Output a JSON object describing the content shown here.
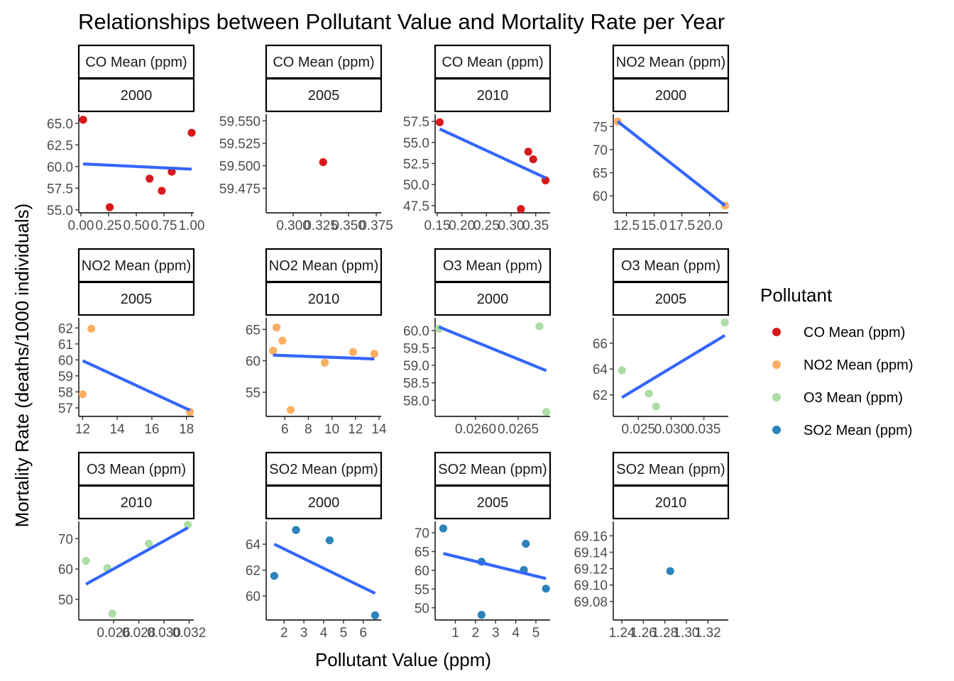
{
  "colors": {
    "CO Mean (ppm)": "#d7191c",
    "NO2 Mean (ppm)": "#fdae61",
    "O3 Mean (ppm)": "#abdda4",
    "SO2 Mean (ppm)": "#2b83ba",
    "fit_line": "#3366ff"
  },
  "chart_data": {
    "type": "scatter",
    "title": "Relationships between Pollutant Value and Mortality Rate per Year",
    "xlabel": "Pollutant Value (ppm)",
    "ylabel": "Mortality Rate (deaths/1000 individuals)",
    "legend": {
      "title": "Pollutant",
      "position": "right",
      "items": [
        "CO Mean (ppm)",
        "NO2 Mean (ppm)",
        "O3 Mean (ppm)",
        "SO2 Mean (ppm)"
      ]
    },
    "facets": [
      {
        "pollutant": "CO Mean (ppm)",
        "year": "2000",
        "xlim": [
          0.0,
          1.0
        ],
        "ylim": [
          54.9,
          65.8
        ],
        "xticks": [
          0.0,
          0.25,
          0.5,
          0.75,
          1.0
        ],
        "xtick_labels": [
          "0.00",
          "0.25",
          "0.50",
          "0.75",
          "1.00"
        ],
        "yticks": [
          55.0,
          57.5,
          60.0,
          62.5,
          65.0
        ],
        "ytick_labels": [
          "55.0",
          "57.5",
          "60.0",
          "62.5",
          "65.0"
        ],
        "points": [
          [
            0.02,
            65.4
          ],
          [
            0.26,
            55.3
          ],
          [
            0.62,
            58.6
          ],
          [
            0.73,
            57.2
          ],
          [
            0.82,
            59.4
          ],
          [
            1.0,
            63.9
          ]
        ],
        "fit": [
          [
            0.02,
            60.3
          ],
          [
            1.0,
            59.7
          ]
        ]
      },
      {
        "pollutant": "CO Mean (ppm)",
        "year": "2005",
        "xlim": [
          0.2775,
          0.3775
        ],
        "ylim": [
          59.45,
          59.555
        ],
        "xticks": [
          0.3,
          0.325,
          0.35,
          0.375
        ],
        "xtick_labels": [
          "0.300",
          "0.325",
          "0.350",
          "0.375"
        ],
        "yticks": [
          59.475,
          59.5,
          59.525,
          59.55
        ],
        "ytick_labels": [
          "59.475",
          "59.500",
          "59.525",
          "59.550"
        ],
        "points": [
          [
            0.327,
            59.504
          ]
        ],
        "fit": null
      },
      {
        "pollutant": "CO Mean (ppm)",
        "year": "2010",
        "xlim": [
          0.15,
          0.375
        ],
        "ylim": [
          46.9,
          58.1
        ],
        "xticks": [
          0.15,
          0.2,
          0.25,
          0.3,
          0.35
        ],
        "xtick_labels": [
          "0.15",
          "0.20",
          "0.25",
          "0.30",
          "0.35"
        ],
        "yticks": [
          47.5,
          50.0,
          52.5,
          55.0,
          57.5
        ],
        "ytick_labels": [
          "47.5",
          "50.0",
          "52.5",
          "55.0",
          "57.5"
        ],
        "points": [
          [
            0.155,
            57.4
          ],
          [
            0.32,
            47.1
          ],
          [
            0.335,
            53.9
          ],
          [
            0.345,
            53.0
          ],
          [
            0.37,
            50.5
          ]
        ],
        "fit": [
          [
            0.155,
            56.6
          ],
          [
            0.37,
            50.8
          ]
        ]
      },
      {
        "pollutant": "NO2 Mean (ppm)",
        "year": "2000",
        "xlim": [
          11.5,
          21.5
        ],
        "ylim": [
          56.8,
          77.2
        ],
        "xticks": [
          12.5,
          15.0,
          17.5,
          20.0
        ],
        "xtick_labels": [
          "12.5",
          "15.0",
          "17.5",
          "20.0"
        ],
        "yticks": [
          60,
          65,
          70,
          75
        ],
        "ytick_labels": [
          "60",
          "65",
          "70",
          "75"
        ],
        "points": [
          [
            11.7,
            76.1
          ],
          [
            21.4,
            57.9
          ]
        ],
        "fit": [
          [
            11.7,
            76.1
          ],
          [
            21.4,
            57.9
          ]
        ]
      },
      {
        "pollutant": "NO2 Mean (ppm)",
        "year": "2005",
        "xlim": [
          11.9,
          18.3
        ],
        "ylim": [
          56.6,
          62.5
        ],
        "xticks": [
          12,
          14,
          16,
          18
        ],
        "xtick_labels": [
          "12",
          "14",
          "16",
          "18"
        ],
        "yticks": [
          57,
          58,
          59,
          60,
          61,
          62
        ],
        "ytick_labels": [
          "57",
          "58",
          "59",
          "60",
          "61",
          "62"
        ],
        "points": [
          [
            12.0,
            57.85
          ],
          [
            12.5,
            61.95
          ],
          [
            18.2,
            56.75
          ]
        ],
        "fit": [
          [
            12.0,
            59.95
          ],
          [
            18.2,
            56.85
          ]
        ]
      },
      {
        "pollutant": "NO2 Mean (ppm)",
        "year": "2010",
        "xlim": [
          4.6,
          14.0
        ],
        "ylim": [
          51.5,
          66.5
        ],
        "xticks": [
          6,
          8,
          10,
          12,
          14
        ],
        "xtick_labels": [
          "6",
          "8",
          "10",
          "12",
          "14"
        ],
        "yticks": [
          55,
          60,
          65
        ],
        "ytick_labels": [
          "55",
          "60",
          "65"
        ],
        "points": [
          [
            5.0,
            61.6
          ],
          [
            5.3,
            65.3
          ],
          [
            5.8,
            63.2
          ],
          [
            6.5,
            52.2
          ],
          [
            9.4,
            59.7
          ],
          [
            11.8,
            61.4
          ],
          [
            13.6,
            61.1
          ]
        ],
        "fit": [
          [
            5.0,
            60.9
          ],
          [
            13.6,
            60.3
          ]
        ]
      },
      {
        "pollutant": "O3 Mean (ppm)",
        "year": "2000",
        "xlim": [
          0.02555,
          0.02685
        ],
        "ylim": [
          57.6,
          60.3
        ],
        "xticks": [
          0.026,
          0.0265
        ],
        "xtick_labels": [
          "0.0260",
          "0.0265"
        ],
        "yticks": [
          58.0,
          58.5,
          59.0,
          59.5,
          60.0
        ],
        "ytick_labels": [
          "58.0",
          "58.5",
          "59.0",
          "59.5",
          "60.0"
        ],
        "points": [
          [
            0.02557,
            60.05
          ],
          [
            0.02675,
            60.12
          ],
          [
            0.02683,
            57.67
          ]
        ],
        "fit": [
          [
            0.02557,
            60.1
          ],
          [
            0.02683,
            58.85
          ]
        ]
      },
      {
        "pollutant": "O3 Mean (ppm)",
        "year": "2005",
        "xlim": [
          0.0215,
          0.0384
        ],
        "ylim": [
          60.5,
          67.8
        ],
        "xticks": [
          0.025,
          0.03,
          0.035
        ],
        "xtick_labels": [
          "0.025",
          "0.030",
          "0.035"
        ],
        "yticks": [
          62,
          64,
          66
        ],
        "ytick_labels": [
          "62",
          "64",
          "66"
        ],
        "points": [
          [
            0.0225,
            63.9
          ],
          [
            0.0266,
            62.1
          ],
          [
            0.0277,
            61.1
          ],
          [
            0.0382,
            67.6
          ]
        ],
        "fit": [
          [
            0.0225,
            61.8
          ],
          [
            0.0382,
            66.6
          ]
        ]
      },
      {
        "pollutant": "O3 Mean (ppm)",
        "year": "2010",
        "xlim": [
          0.0234,
          0.0322
        ],
        "ylim": [
          43.9,
          75.0
        ],
        "xticks": [
          0.026,
          0.028,
          0.03,
          0.032
        ],
        "xtick_labels": [
          "0.026",
          "0.028",
          "0.030",
          "0.032"
        ],
        "yticks": [
          50,
          60,
          70
        ],
        "ytick_labels": [
          "50",
          "60",
          "70"
        ],
        "points": [
          [
            0.0238,
            62.7
          ],
          [
            0.0255,
            60.3
          ],
          [
            0.0259,
            45.3
          ],
          [
            0.0288,
            68.4
          ],
          [
            0.0319,
            74.6
          ]
        ],
        "fit": [
          [
            0.0238,
            55.0
          ],
          [
            0.0319,
            73.6
          ]
        ]
      },
      {
        "pollutant": "SO2 Mean (ppm)",
        "year": "2000",
        "xlim": [
          1.2,
          6.8
        ],
        "ylim": [
          58.3,
          65.6
        ],
        "xticks": [
          2,
          3,
          4,
          5,
          6
        ],
        "xtick_labels": [
          "2",
          "3",
          "4",
          "5",
          "6"
        ],
        "yticks": [
          60,
          62,
          64
        ],
        "ytick_labels": [
          "60",
          "62",
          "64"
        ],
        "points": [
          [
            1.5,
            61.55
          ],
          [
            2.6,
            65.1
          ],
          [
            4.3,
            64.3
          ],
          [
            6.6,
            58.5
          ]
        ],
        "fit": [
          [
            1.5,
            64.0
          ],
          [
            6.6,
            60.2
          ]
        ]
      },
      {
        "pollutant": "SO2 Mean (ppm)",
        "year": "2005",
        "xlim": [
          0.1,
          5.6
        ],
        "ylim": [
          47.3,
          72.5
        ],
        "xticks": [
          1,
          2,
          3,
          4,
          5
        ],
        "xtick_labels": [
          "1",
          "2",
          "3",
          "4",
          "5"
        ],
        "yticks": [
          50,
          55,
          60,
          65,
          70
        ],
        "ytick_labels": [
          "50",
          "55",
          "60",
          "65",
          "70"
        ],
        "points": [
          [
            0.4,
            71.2
          ],
          [
            2.3,
            62.3
          ],
          [
            2.3,
            48.1
          ],
          [
            4.4,
            60.1
          ],
          [
            4.5,
            67.1
          ],
          [
            5.5,
            55.1
          ]
        ],
        "fit": [
          [
            0.4,
            64.5
          ],
          [
            5.5,
            57.8
          ]
        ]
      },
      {
        "pollutant": "SO2 Mean (ppm)",
        "year": "2010",
        "xlim": [
          1.234,
          1.337
        ],
        "ylim": [
          69.06,
          69.175
        ],
        "xticks": [
          1.24,
          1.26,
          1.28,
          1.3,
          1.32
        ],
        "xtick_labels": [
          "1.24",
          "1.26",
          "1.28",
          "1.30",
          "1.32"
        ],
        "yticks": [
          69.08,
          69.1,
          69.12,
          69.14,
          69.16
        ],
        "ytick_labels": [
          "69.08",
          "69.10",
          "69.12",
          "69.14",
          "69.16"
        ],
        "points": [
          [
            1.285,
            69.117
          ]
        ],
        "fit": null
      }
    ]
  }
}
